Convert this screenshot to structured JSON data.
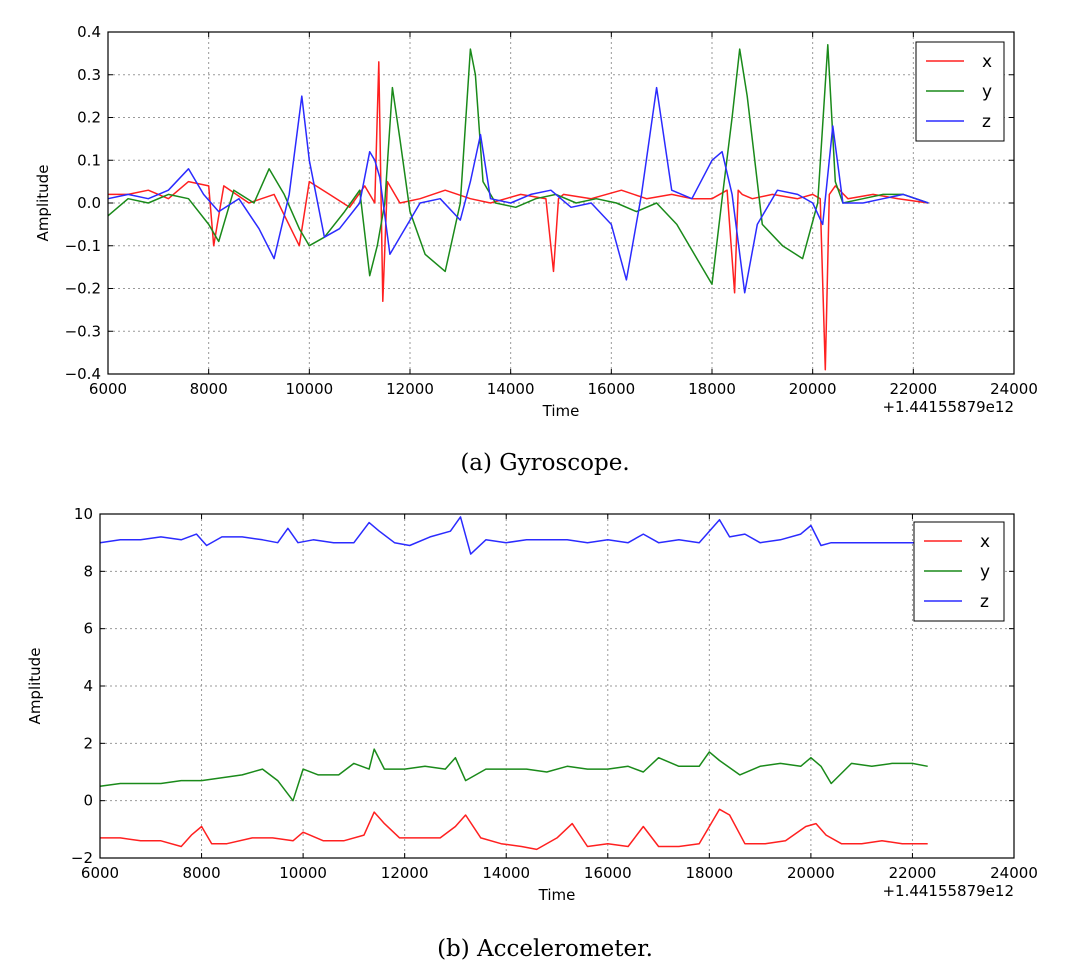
{
  "chart_data": [
    {
      "type": "line",
      "caption": "(a) Gyroscope.",
      "xlabel": "Time",
      "ylabel": "Amplitude",
      "x_offset_label": "+1.44155879e12",
      "xlim": [
        6000,
        24000
      ],
      "ylim": [
        -0.4,
        0.4
      ],
      "xticks": [
        6000,
        8000,
        10000,
        12000,
        14000,
        16000,
        18000,
        20000,
        22000,
        24000
      ],
      "yticks": [
        -0.4,
        -0.3,
        -0.2,
        -0.1,
        0.0,
        0.1,
        0.2,
        0.3,
        0.4
      ],
      "ytick_labels": [
        "−0.4",
        "−0.3",
        "−0.2",
        "−0.1",
        "0.0",
        "0.1",
        "0.2",
        "0.3",
        "0.4"
      ],
      "grid": true,
      "legend": "top-right",
      "series": [
        {
          "name": "x",
          "color": "#ff2020",
          "x": [
            6000,
            6400,
            6800,
            7200,
            7600,
            8000,
            8100,
            8300,
            8800,
            9300,
            9800,
            10000,
            10400,
            10800,
            11100,
            11300,
            11380,
            11460,
            11550,
            11800,
            12200,
            12700,
            13200,
            13600,
            14200,
            14700,
            14850,
            14950,
            15050,
            15600,
            16200,
            16700,
            17200,
            17600,
            18000,
            18300,
            18450,
            18520,
            18600,
            18800,
            19200,
            19700,
            20000,
            20150,
            20250,
            20330,
            20450,
            20700,
            21200,
            21700,
            22300
          ],
          "y": [
            0.02,
            0.02,
            0.03,
            0.01,
            0.05,
            0.04,
            -0.1,
            0.04,
            0.0,
            0.02,
            -0.1,
            0.05,
            0.02,
            -0.01,
            0.04,
            0.0,
            0.33,
            -0.23,
            0.05,
            0.0,
            0.01,
            0.03,
            0.01,
            0.0,
            0.02,
            0.01,
            -0.16,
            0.01,
            0.02,
            0.01,
            0.03,
            0.01,
            0.02,
            0.01,
            0.01,
            0.03,
            -0.21,
            0.03,
            0.02,
            0.01,
            0.02,
            0.01,
            0.02,
            0.01,
            -0.39,
            0.02,
            0.04,
            0.01,
            0.02,
            0.01,
            0.0
          ]
        },
        {
          "name": "y",
          "color": "#1a8a1a",
          "x": [
            6000,
            6400,
            6800,
            7200,
            7600,
            8000,
            8200,
            8500,
            8900,
            9200,
            9500,
            9800,
            10000,
            10300,
            10700,
            11000,
            11200,
            11350,
            11500,
            11650,
            11800,
            12000,
            12300,
            12700,
            13000,
            13200,
            13300,
            13450,
            13700,
            14100,
            14500,
            14900,
            15300,
            15700,
            16100,
            16500,
            16900,
            17300,
            17700,
            18000,
            18200,
            18400,
            18550,
            18700,
            19000,
            19400,
            19800,
            20100,
            20300,
            20450,
            20600,
            21000,
            21400,
            21800,
            22300
          ],
          "y": [
            -0.03,
            0.01,
            0.0,
            0.02,
            0.01,
            -0.05,
            -0.09,
            0.03,
            0.0,
            0.08,
            0.02,
            -0.06,
            -0.1,
            -0.08,
            -0.02,
            0.03,
            -0.17,
            -0.1,
            0.0,
            0.27,
            0.15,
            -0.02,
            -0.12,
            -0.16,
            0.0,
            0.36,
            0.3,
            0.05,
            0.0,
            -0.01,
            0.01,
            0.02,
            0.0,
            0.01,
            0.0,
            -0.02,
            0.0,
            -0.05,
            -0.13,
            -0.19,
            0.01,
            0.2,
            0.36,
            0.25,
            -0.05,
            -0.1,
            -0.13,
            0.0,
            0.37,
            0.05,
            0.0,
            0.01,
            0.02,
            0.02,
            0.0
          ]
        },
        {
          "name": "z",
          "color": "#2b2bff",
          "x": [
            6000,
            6400,
            6800,
            7200,
            7600,
            7900,
            8200,
            8600,
            9000,
            9300,
            9600,
            9850,
            10000,
            10300,
            10600,
            11000,
            11200,
            11300,
            11400,
            11600,
            11800,
            12200,
            12600,
            13000,
            13200,
            13400,
            13600,
            14000,
            14400,
            14800,
            15200,
            15600,
            16000,
            16300,
            16600,
            16900,
            17200,
            17600,
            18000,
            18200,
            18400,
            18650,
            18900,
            19300,
            19700,
            20000,
            20200,
            20400,
            20600,
            21000,
            21400,
            21800,
            22300
          ],
          "y": [
            0.01,
            0.02,
            0.01,
            0.03,
            0.08,
            0.02,
            -0.02,
            0.01,
            -0.06,
            -0.13,
            0.02,
            0.25,
            0.1,
            -0.08,
            -0.06,
            0.0,
            0.12,
            0.1,
            0.06,
            -0.12,
            -0.08,
            0.0,
            0.01,
            -0.04,
            0.05,
            0.16,
            0.01,
            0.0,
            0.02,
            0.03,
            -0.01,
            0.0,
            -0.05,
            -0.18,
            0.02,
            0.27,
            0.03,
            0.01,
            0.1,
            0.12,
            0.02,
            -0.21,
            -0.05,
            0.03,
            0.02,
            0.0,
            -0.05,
            0.18,
            0.0,
            0.0,
            0.01,
            0.02,
            0.0
          ]
        }
      ]
    },
    {
      "type": "line",
      "caption": "(b) Accelerometer.",
      "xlabel": "Time",
      "ylabel": "Amplitude",
      "x_offset_label": "+1.44155879e12",
      "xlim": [
        6000,
        24000
      ],
      "ylim": [
        -2,
        10
      ],
      "xticks": [
        6000,
        8000,
        10000,
        12000,
        14000,
        16000,
        18000,
        20000,
        22000,
        24000
      ],
      "yticks": [
        -2,
        0,
        2,
        4,
        6,
        8,
        10
      ],
      "ytick_labels": [
        "−2",
        "0",
        "2",
        "4",
        "6",
        "8",
        "10"
      ],
      "grid": true,
      "legend": "top-right",
      "series": [
        {
          "name": "x",
          "color": "#ff2020",
          "x": [
            6000,
            6400,
            6800,
            7200,
            7600,
            7800,
            8000,
            8200,
            8500,
            9000,
            9400,
            9800,
            10000,
            10400,
            10800,
            11200,
            11400,
            11600,
            11900,
            12300,
            12700,
            13000,
            13200,
            13500,
            13900,
            14300,
            14600,
            15000,
            15300,
            15600,
            16000,
            16400,
            16700,
            17000,
            17400,
            17800,
            18200,
            18400,
            18700,
            19100,
            19500,
            19900,
            20100,
            20300,
            20600,
            21000,
            21400,
            21800,
            22300
          ],
          "y": [
            -1.3,
            -1.3,
            -1.4,
            -1.4,
            -1.6,
            -1.2,
            -0.9,
            -1.5,
            -1.5,
            -1.3,
            -1.3,
            -1.4,
            -1.1,
            -1.4,
            -1.4,
            -1.2,
            -0.4,
            -0.8,
            -1.3,
            -1.3,
            -1.3,
            -0.9,
            -0.5,
            -1.3,
            -1.5,
            -1.6,
            -1.7,
            -1.3,
            -0.8,
            -1.6,
            -1.5,
            -1.6,
            -0.9,
            -1.6,
            -1.6,
            -1.5,
            -0.3,
            -0.5,
            -1.5,
            -1.5,
            -1.4,
            -0.9,
            -0.8,
            -1.2,
            -1.5,
            -1.5,
            -1.4,
            -1.5,
            -1.5
          ]
        },
        {
          "name": "y",
          "color": "#1a8a1a",
          "x": [
            6000,
            6400,
            6800,
            7200,
            7600,
            8000,
            8400,
            8800,
            9200,
            9500,
            9800,
            10000,
            10300,
            10700,
            11000,
            11300,
            11400,
            11600,
            12000,
            12400,
            12800,
            13000,
            13200,
            13600,
            14000,
            14400,
            14800,
            15200,
            15600,
            16000,
            16400,
            16700,
            17000,
            17400,
            17800,
            18000,
            18200,
            18600,
            19000,
            19400,
            19800,
            20000,
            20200,
            20400,
            20800,
            21200,
            21600,
            22000,
            22300
          ],
          "y": [
            0.5,
            0.6,
            0.6,
            0.6,
            0.7,
            0.7,
            0.8,
            0.9,
            1.1,
            0.7,
            0.0,
            1.1,
            0.9,
            0.9,
            1.3,
            1.1,
            1.8,
            1.1,
            1.1,
            1.2,
            1.1,
            1.5,
            0.7,
            1.1,
            1.1,
            1.1,
            1.0,
            1.2,
            1.1,
            1.1,
            1.2,
            1.0,
            1.5,
            1.2,
            1.2,
            1.7,
            1.4,
            0.9,
            1.2,
            1.3,
            1.2,
            1.5,
            1.2,
            0.6,
            1.3,
            1.2,
            1.3,
            1.3,
            1.2
          ]
        },
        {
          "name": "z",
          "color": "#2b2bff",
          "x": [
            6000,
            6400,
            6800,
            7200,
            7600,
            7900,
            8100,
            8400,
            8800,
            9200,
            9500,
            9700,
            9900,
            10200,
            10600,
            11000,
            11300,
            11500,
            11800,
            12100,
            12500,
            12900,
            13100,
            13300,
            13600,
            14000,
            14400,
            14800,
            15200,
            15600,
            16000,
            16400,
            16700,
            17000,
            17400,
            17800,
            18200,
            18400,
            18700,
            19000,
            19400,
            19800,
            20000,
            20200,
            20400,
            20800,
            21200,
            21600,
            22000,
            22300
          ],
          "y": [
            9.0,
            9.1,
            9.1,
            9.2,
            9.1,
            9.3,
            8.9,
            9.2,
            9.2,
            9.1,
            9.0,
            9.5,
            9.0,
            9.1,
            9.0,
            9.0,
            9.7,
            9.4,
            9.0,
            8.9,
            9.2,
            9.4,
            9.9,
            8.6,
            9.1,
            9.0,
            9.1,
            9.1,
            9.1,
            9.0,
            9.1,
            9.0,
            9.3,
            9.0,
            9.1,
            9.0,
            9.8,
            9.2,
            9.3,
            9.0,
            9.1,
            9.3,
            9.6,
            8.9,
            9.0,
            9.0,
            9.0,
            9.0,
            9.0,
            9.0
          ]
        }
      ]
    }
  ]
}
